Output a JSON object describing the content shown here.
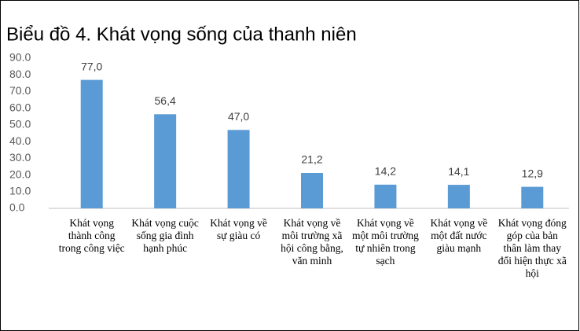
{
  "chart_data": {
    "type": "bar",
    "title": "Biểu đồ 4. Khát vọng sống của thanh niên",
    "categories": [
      "Khát vọng thành công trong công việc",
      "Khát vọng cuộc sống gia đình hạnh phúc",
      "Khát vọng về sự giàu có",
      "Khát vọng về môi trường xã hội công bằng, văn minh",
      "Khát vọng về một môi trường tự nhiên trong sạch",
      "Khát vọng về một đất nước giàu mạnh",
      "Khát vọng đóng góp của bản thân làm thay đổi hiện thực xã hội"
    ],
    "values": [
      77.0,
      56.4,
      47.0,
      21.2,
      14.2,
      14.1,
      12.9
    ],
    "value_labels": [
      "77,0",
      "56,4",
      "47,0",
      "21,2",
      "14,2",
      "14,1",
      "12,9"
    ],
    "color": "#5b9bd5",
    "ylim": [
      0,
      90
    ],
    "yticks": [
      {
        "value": 0,
        "label": "0.0"
      },
      {
        "value": 10,
        "label": "10.0"
      },
      {
        "value": 20,
        "label": "20.0"
      },
      {
        "value": 30,
        "label": "30.0"
      },
      {
        "value": 40,
        "label": "40.0"
      },
      {
        "value": 50,
        "label": "50.0"
      },
      {
        "value": 60,
        "label": "60.0"
      },
      {
        "value": 70,
        "label": "70.0"
      },
      {
        "value": 80,
        "label": "80.0"
      },
      {
        "value": 90,
        "label": "90.0"
      }
    ],
    "grid": false
  }
}
